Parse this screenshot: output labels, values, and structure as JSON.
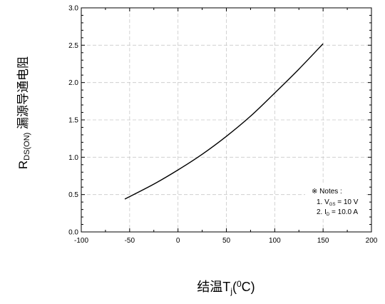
{
  "chart_data": {
    "type": "line",
    "xlabel": "结温T",
    "xlabel_sub": "j",
    "xlabel_unit_open": "(",
    "xlabel_sup": "0",
    "xlabel_unit_close": "C)",
    "ylabel_main": "R",
    "ylabel_sub": "DS(ON)",
    "ylabel_cn": " 漏源导通电阻",
    "xlim": [
      -100,
      200
    ],
    "ylim": [
      0.0,
      3.0
    ],
    "x_ticks": [
      -100,
      -50,
      0,
      50,
      100,
      150,
      200
    ],
    "x_tick_labels": [
      "-100",
      "-50",
      "0",
      "50",
      "100",
      "150",
      "200"
    ],
    "y_ticks": [
      0.0,
      0.5,
      1.0,
      1.5,
      2.0,
      2.5,
      3.0
    ],
    "y_tick_labels": [
      "0.0",
      "0.5",
      "1.0",
      "1.5",
      "2.0",
      "2.5",
      "3.0"
    ],
    "grid": true,
    "series": [
      {
        "color": "#000000",
        "x": [
          -55,
          -25,
          0,
          25,
          50,
          75,
          100,
          125,
          150
        ],
        "y": [
          0.44,
          0.64,
          0.83,
          1.04,
          1.28,
          1.55,
          1.86,
          2.18,
          2.52
        ]
      }
    ],
    "notes": {
      "title": "※ Notes :",
      "line1_prefix": "1. V",
      "line1_sub": "GS",
      "line1_suffix": " = 10 V",
      "line2_prefix": "2. I",
      "line2_sub": "D",
      "line2_suffix": " = 10.0 A"
    }
  }
}
